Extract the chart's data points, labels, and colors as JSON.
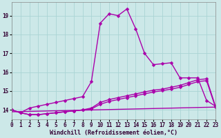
{
  "bg_color": "#cce8e8",
  "grid_color": "#aad4d4",
  "line_color": "#aa00aa",
  "xlabel": "Windchill (Refroidissement éolien,°C)",
  "xlim": [
    0,
    23
  ],
  "ylim": [
    13.5,
    19.7
  ],
  "yticks": [
    14,
    15,
    16,
    17,
    18,
    19
  ],
  "xticks": [
    0,
    1,
    2,
    3,
    4,
    5,
    6,
    7,
    8,
    9,
    10,
    11,
    12,
    13,
    14,
    15,
    16,
    17,
    18,
    19,
    20,
    21,
    22,
    23
  ],
  "line1_x": [
    0,
    1,
    2,
    3,
    4,
    5,
    6,
    7,
    8,
    9,
    10,
    11,
    12,
    13,
    14,
    15,
    16,
    17,
    18,
    19,
    20,
    21,
    22,
    23
  ],
  "line1_y": [
    14.0,
    13.85,
    14.1,
    14.2,
    14.3,
    14.4,
    14.5,
    14.6,
    14.7,
    15.5,
    18.6,
    19.1,
    19.0,
    19.35,
    18.3,
    17.0,
    16.4,
    16.45,
    16.5,
    15.7,
    15.7,
    15.7,
    14.5,
    14.2
  ],
  "line2_x": [
    0,
    1,
    2,
    3,
    4,
    5,
    6,
    7,
    8,
    9,
    10,
    11,
    12,
    13,
    14,
    15,
    16,
    17,
    18,
    19,
    20,
    21,
    22,
    23
  ],
  "line2_y": [
    14.0,
    13.85,
    13.75,
    13.75,
    13.8,
    13.85,
    13.9,
    13.95,
    14.0,
    14.1,
    14.4,
    14.55,
    14.65,
    14.75,
    14.85,
    14.95,
    15.05,
    15.1,
    15.2,
    15.3,
    15.45,
    15.6,
    15.65,
    14.2
  ],
  "line3_x": [
    0,
    1,
    2,
    3,
    4,
    5,
    6,
    7,
    8,
    9,
    10,
    11,
    12,
    13,
    14,
    15,
    16,
    17,
    18,
    19,
    20,
    21,
    22,
    23
  ],
  "line3_y": [
    14.0,
    13.85,
    13.75,
    13.75,
    13.8,
    13.85,
    13.9,
    13.95,
    14.0,
    14.05,
    14.3,
    14.45,
    14.55,
    14.65,
    14.75,
    14.85,
    14.95,
    15.02,
    15.1,
    15.2,
    15.35,
    15.5,
    15.55,
    14.15
  ],
  "line4_x": [
    0,
    23
  ],
  "line4_y": [
    13.9,
    14.15
  ]
}
